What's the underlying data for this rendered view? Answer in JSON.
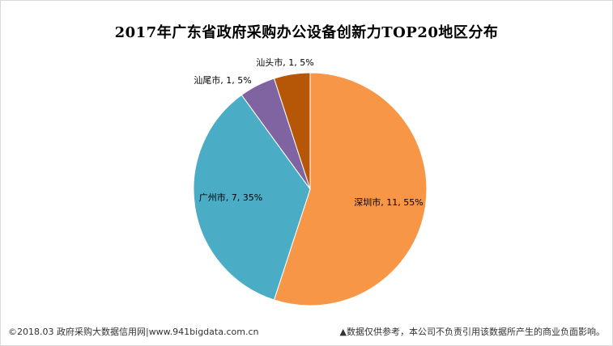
{
  "chart_data": {
    "type": "pie",
    "title": "2017年广东省政府采购办公设备创新力TOP20地区分布",
    "slices": [
      {
        "name": "深圳市",
        "value": 11,
        "percent": "55%",
        "color": "#F79646"
      },
      {
        "name": "广州市",
        "value": 7,
        "percent": "35%",
        "color": "#4BACC6"
      },
      {
        "name": "汕尾市",
        "value": 1,
        "percent": "5%",
        "color": "#8064A2"
      },
      {
        "name": "汕头市",
        "value": 1,
        "percent": "5%",
        "color": "#B65708"
      }
    ]
  },
  "footer": {
    "left": "©2018.03 政府采购大数据信用网|www.941bigdata.com.cn",
    "right": "▲数据仅供参考，本公司不负责引用该数据所产生的商业负面影响。"
  }
}
